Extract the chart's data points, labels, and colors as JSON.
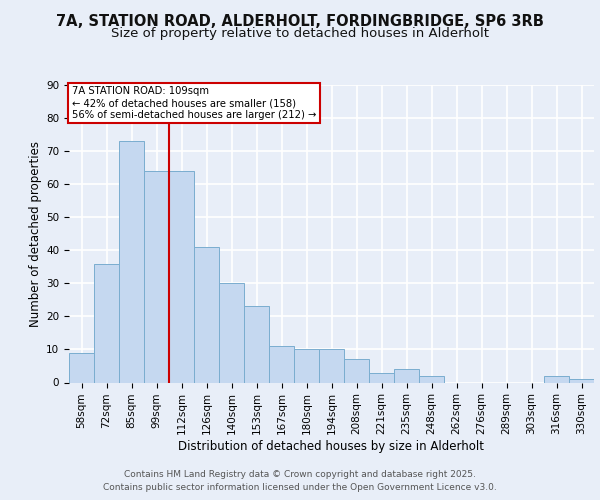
{
  "title1": "7A, STATION ROAD, ALDERHOLT, FORDINGBRIDGE, SP6 3RB",
  "title2": "Size of property relative to detached houses in Alderholt",
  "xlabel": "Distribution of detached houses by size in Alderholt",
  "ylabel": "Number of detached properties",
  "categories": [
    "58sqm",
    "72sqm",
    "85sqm",
    "99sqm",
    "112sqm",
    "126sqm",
    "140sqm",
    "153sqm",
    "167sqm",
    "180sqm",
    "194sqm",
    "208sqm",
    "221sqm",
    "235sqm",
    "248sqm",
    "262sqm",
    "276sqm",
    "289sqm",
    "303sqm",
    "316sqm",
    "330sqm"
  ],
  "values": [
    9,
    36,
    73,
    64,
    64,
    41,
    30,
    23,
    11,
    10,
    10,
    7,
    3,
    4,
    2,
    0,
    0,
    0,
    0,
    2,
    1
  ],
  "bar_color": "#c5d8f0",
  "bar_edge_color": "#7aadcf",
  "background_color": "#e8eef8",
  "grid_color": "#ffffff",
  "vline_color": "#cc0000",
  "vline_x": 3.5,
  "annotation_text": "7A STATION ROAD: 109sqm\n← 42% of detached houses are smaller (158)\n56% of semi-detached houses are larger (212) →",
  "annotation_box_color": "#ffffff",
  "annotation_box_edge": "#cc0000",
  "ylim": [
    0,
    90
  ],
  "yticks": [
    0,
    10,
    20,
    30,
    40,
    50,
    60,
    70,
    80,
    90
  ],
  "footnote": "Contains HM Land Registry data © Crown copyright and database right 2025.\nContains public sector information licensed under the Open Government Licence v3.0.",
  "title_fontsize": 10.5,
  "title2_fontsize": 9.5,
  "axis_label_fontsize": 8.5,
  "tick_fontsize": 7.5,
  "footnote_fontsize": 6.5
}
